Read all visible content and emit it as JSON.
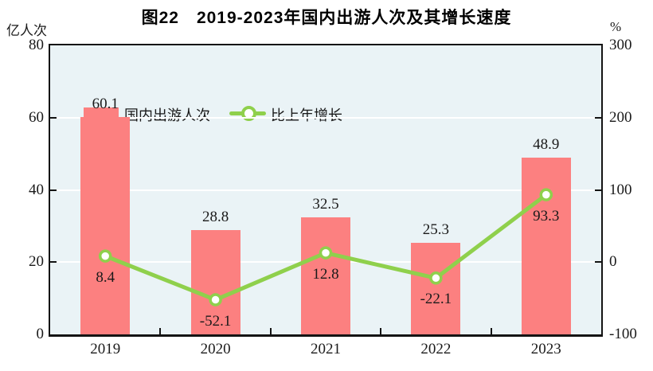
{
  "title": "图22　2019-2023年国内出游人次及其增长速度",
  "left_axis_unit": "亿人次",
  "right_axis_unit": "%",
  "legend": {
    "bar_label": "国内出游人次",
    "line_label": "比上年增长"
  },
  "chart_data": {
    "type": "bar",
    "subtype": "bar+line dual axis",
    "title": "图22　2019-2023年国内出游人次及其增长速度",
    "categories": [
      "2019",
      "2020",
      "2021",
      "2022",
      "2023"
    ],
    "series": [
      {
        "name": "国内出游人次",
        "type": "bar",
        "axis": "left",
        "unit": "亿人次",
        "values": [
          60.1,
          28.8,
          32.5,
          25.3,
          48.9
        ]
      },
      {
        "name": "比上年增长",
        "type": "line",
        "axis": "right",
        "unit": "%",
        "values": [
          8.4,
          -52.1,
          12.8,
          -22.1,
          93.3
        ]
      }
    ],
    "left_axis": {
      "unit": "亿人次",
      "min": 0,
      "max": 80,
      "ticks": [
        80,
        60,
        40,
        20,
        0
      ]
    },
    "right_axis": {
      "unit": "%",
      "min": -100,
      "max": 300,
      "ticks": [
        300,
        200,
        100,
        0,
        -100
      ]
    },
    "grid": "horizontal white lines at left-axis 20/40/60",
    "legend_position": "top-left inside plot",
    "colors": {
      "bar": "#fc8080",
      "line": "#8fd04c",
      "marker_fill": "#ffffff",
      "plot_bg": "#eaf3f6",
      "grid": "#ffffff",
      "border": "#141414",
      "text": "#1a1a1a"
    }
  }
}
